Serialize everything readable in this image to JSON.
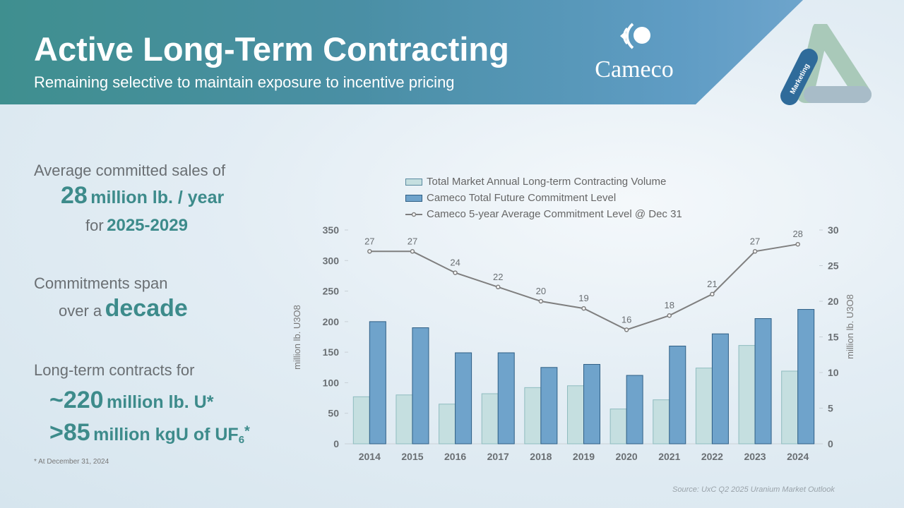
{
  "header": {
    "title": "Active Long-Term Contracting",
    "subtitle": "Remaining selective to maintain exposure to incentive pricing",
    "logo_text": "Cameco",
    "badge_text": "Marketing"
  },
  "highlights": {
    "avg_prefix": "Average committed sales of",
    "avg_value": "28",
    "avg_unit": "million lb. / year",
    "avg_for": "for",
    "avg_years": "2025-2029",
    "span_prefix": "Commitments span",
    "span_over": "over a",
    "span_value": "decade",
    "lt_prefix": "Long-term contracts for",
    "lt_value1": "~220",
    "lt_unit1": "million lb. U*",
    "lt_value2": ">85",
    "lt_unit2": "million kgU of UF",
    "lt_sub2": "6",
    "lt_star2": "*",
    "footnote": "* At December 31, 2024"
  },
  "source": "Source: UxC Q2 2025 Uranium Market Outlook",
  "colors": {
    "market": "#c5dfe0",
    "cameco": "#6fa3cb",
    "line": "#7f7f7f",
    "teal": "#3d8b8b"
  },
  "chart_data": {
    "type": "bar",
    "categories": [
      "2014",
      "2015",
      "2016",
      "2017",
      "2018",
      "2019",
      "2020",
      "2021",
      "2022",
      "2023",
      "2024"
    ],
    "series": [
      {
        "name": "Total Market Annual Long-term Contracting Volume",
        "type": "bar",
        "axis": "left",
        "values": [
          77,
          80,
          65,
          82,
          92,
          95,
          57,
          72,
          124,
          161,
          119
        ]
      },
      {
        "name": "Cameco Total Future Commitment Level",
        "type": "bar",
        "axis": "left",
        "values": [
          200,
          190,
          149,
          149,
          125,
          130,
          112,
          160,
          180,
          205,
          220
        ]
      },
      {
        "name": "Cameco 5-year Average Commitment Level @ Dec 31",
        "type": "line",
        "axis": "right",
        "values": [
          27,
          27,
          24,
          22,
          20,
          19,
          16,
          18,
          21,
          27,
          28
        ]
      }
    ],
    "ylabel": "million lb. U3O8",
    "y2label": "million lb. U3O8",
    "ylim": [
      0,
      350
    ],
    "yticks": [
      0,
      50,
      100,
      150,
      200,
      250,
      300,
      350
    ],
    "y2lim": [
      0,
      30
    ],
    "y2ticks": [
      0,
      5,
      10,
      15,
      20,
      25,
      30
    ],
    "legend": "top"
  }
}
